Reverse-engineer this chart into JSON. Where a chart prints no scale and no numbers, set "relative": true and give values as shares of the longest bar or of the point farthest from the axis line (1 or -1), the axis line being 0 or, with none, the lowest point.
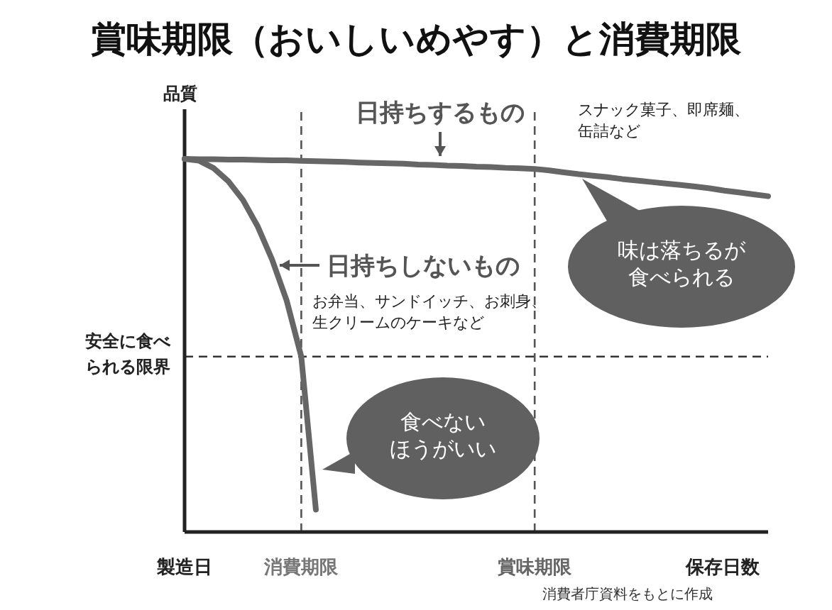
{
  "chart_data": {
    "type": "line",
    "title": "賞味期限（おいしいめやす）と消費期限",
    "ylabel": "品質",
    "xlabel": "保存日数",
    "relative": true,
    "categories": [
      "製造日",
      null,
      null,
      null,
      null,
      null,
      null,
      null,
      "消費期限",
      null,
      null,
      null,
      null,
      null,
      null,
      null,
      null,
      null,
      null,
      null,
      null,
      null,
      null,
      null,
      "賞味期限",
      null,
      null,
      null,
      null,
      null,
      null,
      null,
      null,
      null,
      null,
      null,
      null,
      null,
      null,
      null,
      null
    ],
    "series": [
      {
        "color": "#666666",
        "values": [
          1.0,
          0.999,
          0.999,
          0.998,
          0.998,
          0.997,
          0.996,
          0.996,
          0.995,
          0.994,
          0.993,
          0.992,
          0.99,
          0.989,
          0.988,
          0.987,
          0.985,
          0.984,
          0.982,
          0.981,
          0.979,
          0.978,
          0.976,
          0.975,
          0.973,
          0.969,
          0.964,
          0.959,
          0.955,
          0.951,
          0.946,
          0.942,
          0.938,
          0.934,
          0.93,
          0.926,
          0.921,
          0.915,
          0.91,
          0.905,
          0.9
        ]
      },
      {
        "color": "#666666",
        "values": [
          1.0,
          0.995,
          0.975,
          0.94,
          0.89,
          0.82,
          0.73,
          0.62,
          0.47,
          0.06,
          null,
          null,
          null,
          null,
          null,
          null,
          null,
          null,
          null,
          null,
          null,
          null,
          null,
          null,
          null,
          null,
          null,
          null,
          null,
          null,
          null,
          null,
          null,
          null,
          null,
          null,
          null,
          null,
          null,
          null,
          null
        ]
      }
    ],
    "ref_lines": [
      {
        "axis": "x",
        "value": "消費期限",
        "line_style": "dashed",
        "color": "#555555"
      },
      {
        "axis": "x",
        "value": "賞味期限",
        "line_style": "dashed",
        "color": "#555555"
      },
      {
        "axis": "y",
        "value": 0.47,
        "label": "安全に食べられる限界",
        "line_style": "dashed",
        "color": "#333333"
      }
    ],
    "annotations": [
      "日持ちするもの",
      "スナック菓子、即席麺、缶詰など",
      "日持ちしないもの",
      "お弁当、サンドイッチ、お刺身、生クリームのケーキなど",
      "味は落ちるが食べられる",
      "食べないほうがいい",
      "消費者庁資料をもとに作成"
    ],
    "grid": false,
    "legend": false,
    "line_style": "solid",
    "marker": "none"
  }
}
